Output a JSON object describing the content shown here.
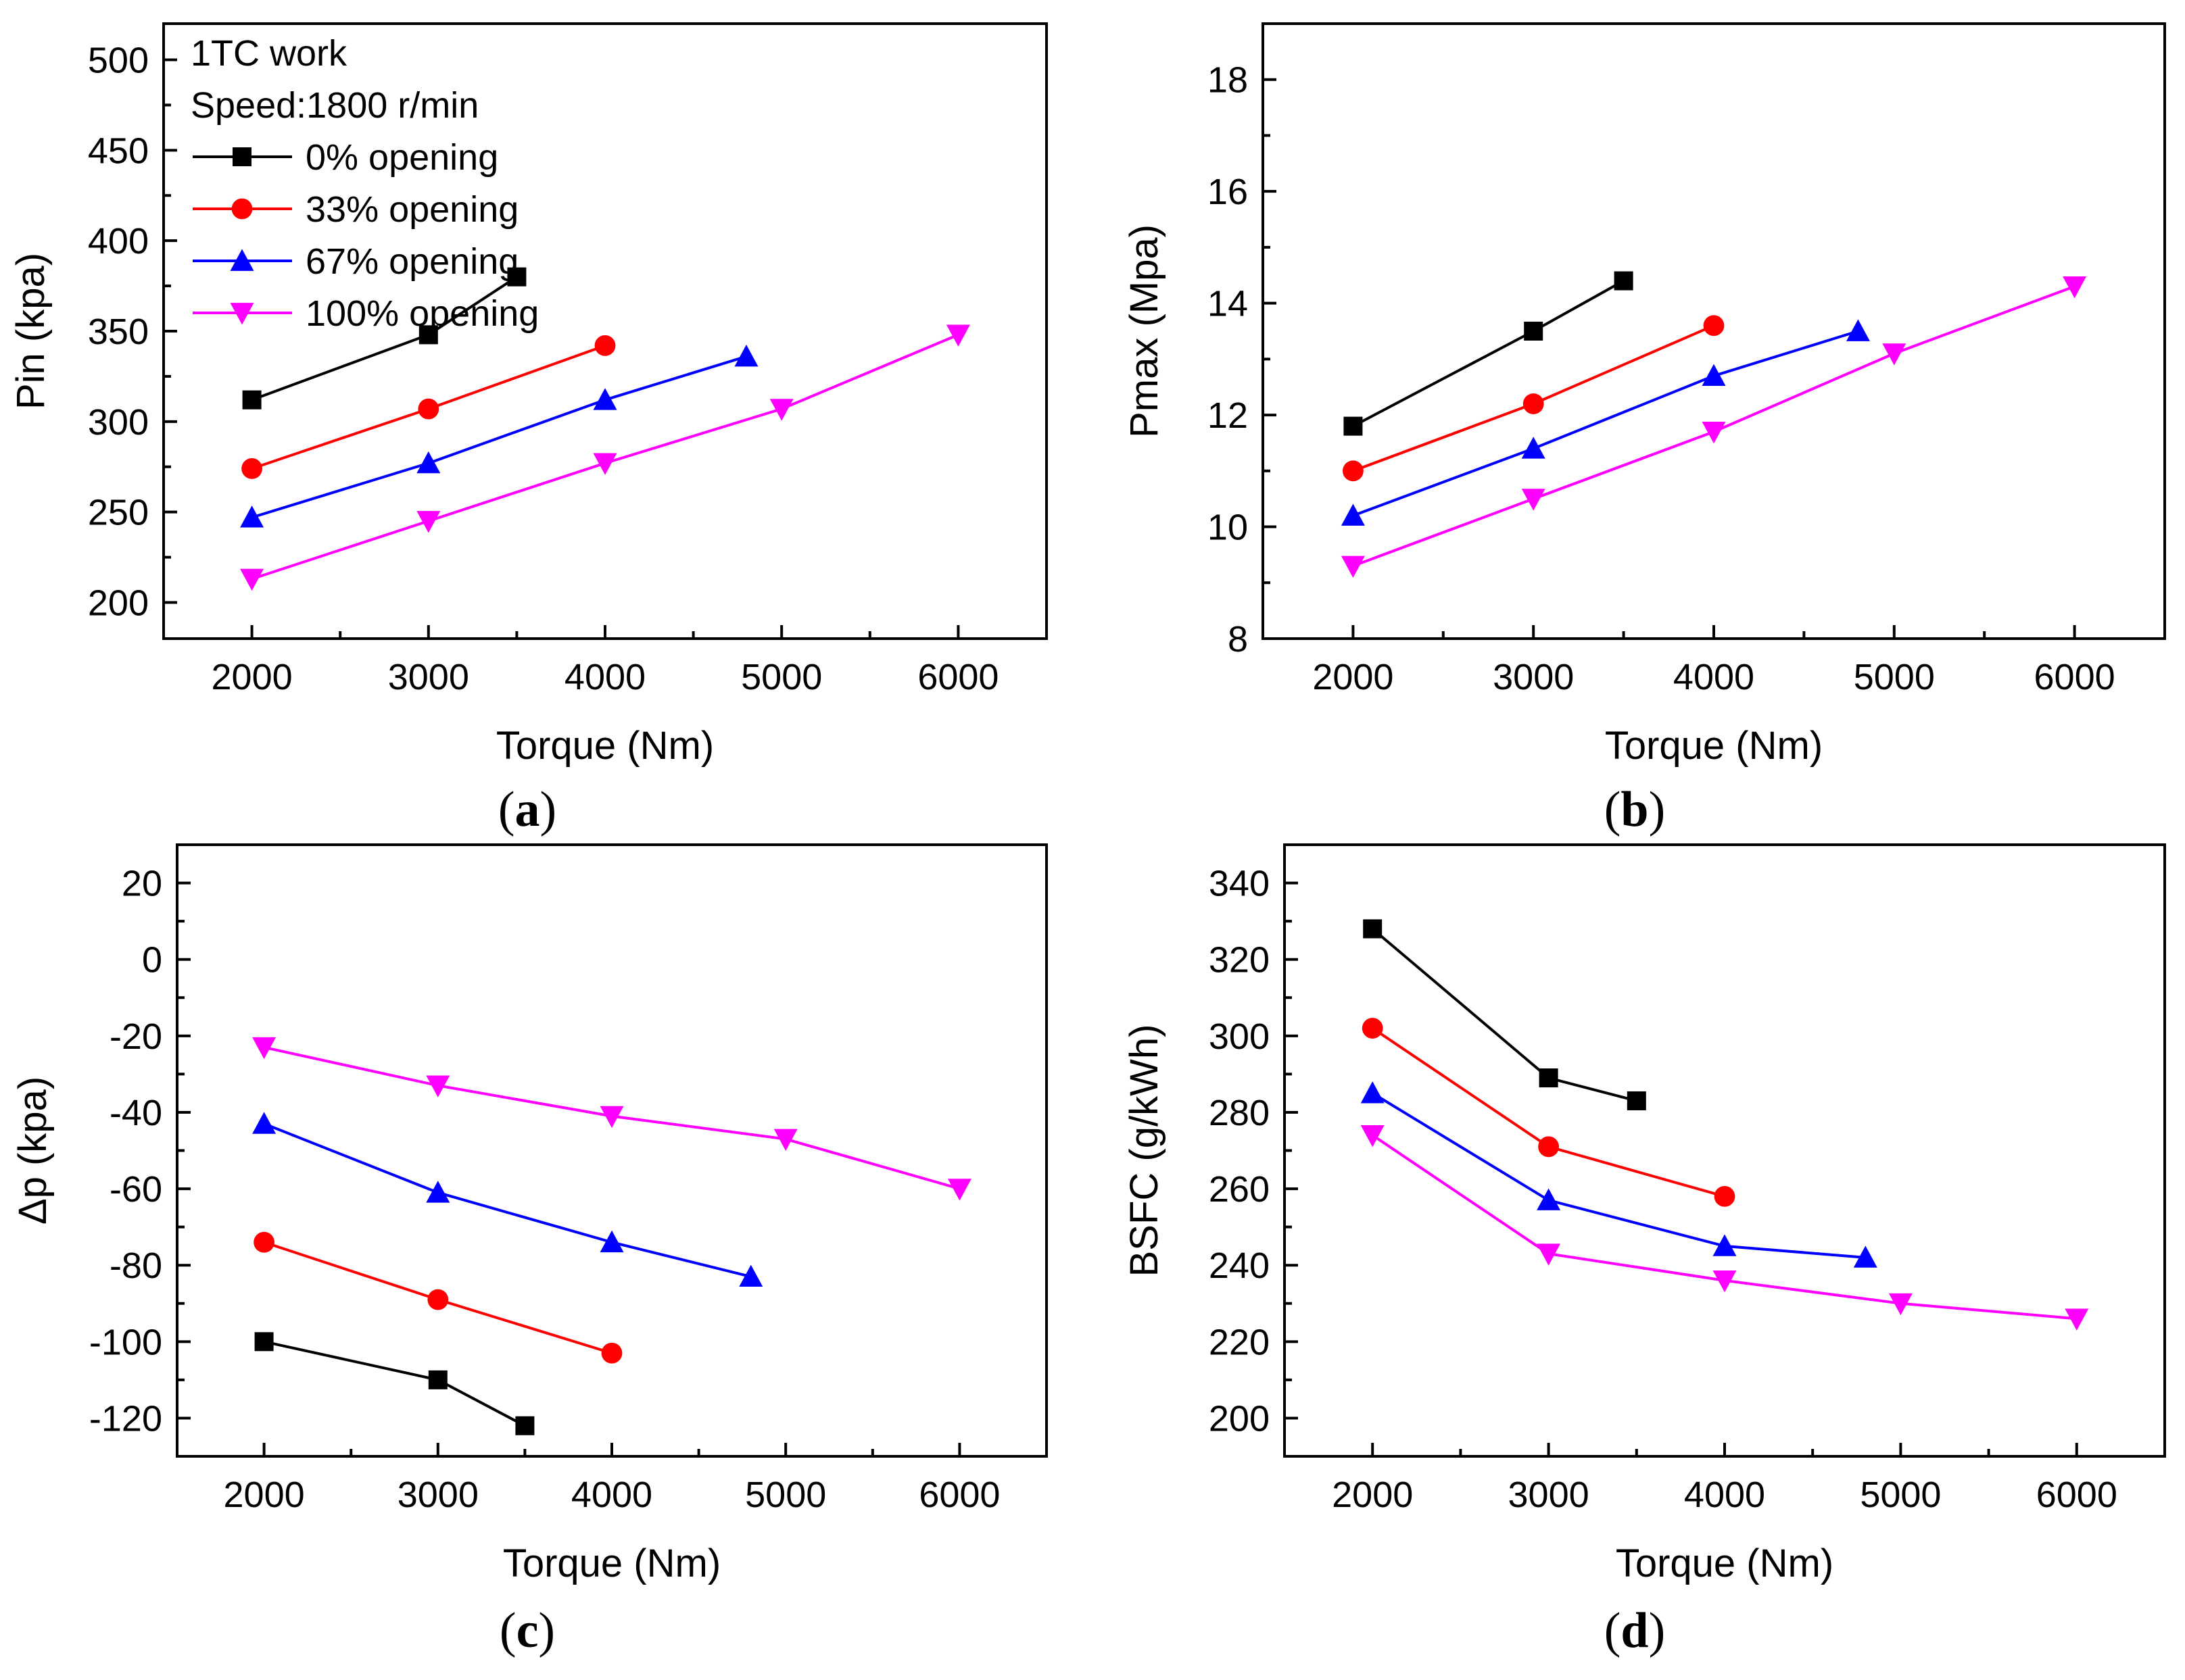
{
  "chart_data": [
    {
      "type": "line",
      "panel_label": "a",
      "xlabel": "Torque (Nm)",
      "ylabel": "Pin (kpa)",
      "xlim": [
        1500,
        6500
      ],
      "ylim": [
        180,
        520
      ],
      "xticks": [
        2000,
        3000,
        4000,
        5000,
        6000
      ],
      "yticks": [
        200,
        250,
        300,
        350,
        400,
        450,
        500
      ],
      "annotations": [
        "1TC work",
        "Speed:1800 r/min"
      ],
      "legend_position": "top-left",
      "series": [
        {
          "name": "0% opening",
          "color": "#000000",
          "marker": "square",
          "x": [
            2000,
            3000,
            3500
          ],
          "y": [
            312,
            348,
            380
          ]
        },
        {
          "name": "33% opening",
          "color": "#ff0000",
          "marker": "circle",
          "x": [
            2000,
            3000,
            4000
          ],
          "y": [
            274,
            307,
            342
          ]
        },
        {
          "name": "67% opening",
          "color": "#0000ff",
          "marker": "triangle-up",
          "x": [
            2000,
            3000,
            4000,
            4800
          ],
          "y": [
            247,
            277,
            312,
            336
          ]
        },
        {
          "name": "100% opening",
          "color": "#ff00ff",
          "marker": "triangle-down",
          "x": [
            2000,
            3000,
            4000,
            5000,
            6000
          ],
          "y": [
            213,
            245,
            277,
            307,
            348
          ]
        }
      ]
    },
    {
      "type": "line",
      "panel_label": "b",
      "xlabel": "Torque (Nm)",
      "ylabel": "Pmax (Mpa)",
      "xlim": [
        1500,
        6500
      ],
      "ylim": [
        8,
        19
      ],
      "xticks": [
        2000,
        3000,
        4000,
        5000,
        6000
      ],
      "yticks": [
        8,
        10,
        12,
        14,
        16,
        18
      ],
      "series": [
        {
          "name": "0% opening",
          "color": "#000000",
          "marker": "square",
          "x": [
            2000,
            3000,
            3500
          ],
          "y": [
            11.8,
            13.5,
            14.4
          ]
        },
        {
          "name": "33% opening",
          "color": "#ff0000",
          "marker": "circle",
          "x": [
            2000,
            3000,
            4000
          ],
          "y": [
            11.0,
            12.2,
            13.6
          ]
        },
        {
          "name": "67% opening",
          "color": "#0000ff",
          "marker": "triangle-up",
          "x": [
            2000,
            3000,
            4000,
            4800
          ],
          "y": [
            10.2,
            11.4,
            12.7,
            13.5
          ]
        },
        {
          "name": "100% opening",
          "color": "#ff00ff",
          "marker": "triangle-down",
          "x": [
            2000,
            3000,
            4000,
            5000,
            6000
          ],
          "y": [
            9.3,
            10.5,
            11.7,
            13.1,
            14.3
          ]
        }
      ]
    },
    {
      "type": "line",
      "panel_label": "c",
      "xlabel": "Torque (Nm)",
      "ylabel": "Δp (kpa)",
      "xlim": [
        1500,
        6500
      ],
      "ylim": [
        -130,
        30
      ],
      "xticks": [
        2000,
        3000,
        4000,
        5000,
        6000
      ],
      "yticks": [
        -120,
        -100,
        -80,
        -60,
        -40,
        -20,
        0,
        20
      ],
      "series": [
        {
          "name": "0% opening",
          "color": "#000000",
          "marker": "square",
          "x": [
            2000,
            3000,
            3500
          ],
          "y": [
            -100,
            -110,
            -122
          ]
        },
        {
          "name": "33% opening",
          "color": "#ff0000",
          "marker": "circle",
          "x": [
            2000,
            3000,
            4000
          ],
          "y": [
            -74,
            -89,
            -103
          ]
        },
        {
          "name": "67% opening",
          "color": "#0000ff",
          "marker": "triangle-up",
          "x": [
            2000,
            3000,
            4000,
            4800
          ],
          "y": [
            -43,
            -61,
            -74,
            -83
          ]
        },
        {
          "name": "100% opening",
          "color": "#ff00ff",
          "marker": "triangle-down",
          "x": [
            2000,
            3000,
            4000,
            5000,
            6000
          ],
          "y": [
            -23,
            -33,
            -41,
            -47,
            -60
          ]
        }
      ]
    },
    {
      "type": "line",
      "panel_label": "d",
      "xlabel": "Torque (Nm)",
      "ylabel": "BSFC (g/kWh)",
      "xlim": [
        1500,
        6500
      ],
      "ylim": [
        190,
        350
      ],
      "xticks": [
        2000,
        3000,
        4000,
        5000,
        6000
      ],
      "yticks": [
        200,
        220,
        240,
        260,
        280,
        300,
        320,
        340
      ],
      "series": [
        {
          "name": "0% opening",
          "color": "#000000",
          "marker": "square",
          "x": [
            2000,
            3000,
            3500
          ],
          "y": [
            328,
            289,
            283
          ]
        },
        {
          "name": "33% opening",
          "color": "#ff0000",
          "marker": "circle",
          "x": [
            2000,
            3000,
            4000
          ],
          "y": [
            302,
            271,
            258
          ]
        },
        {
          "name": "67% opening",
          "color": "#0000ff",
          "marker": "triangle-up",
          "x": [
            2000,
            3000,
            4000,
            4800
          ],
          "y": [
            285,
            257,
            245,
            242
          ]
        },
        {
          "name": "100% opening",
          "color": "#ff00ff",
          "marker": "triangle-down",
          "x": [
            2000,
            3000,
            4000,
            5000,
            6000
          ],
          "y": [
            274,
            243,
            236,
            230,
            226
          ]
        }
      ]
    }
  ]
}
